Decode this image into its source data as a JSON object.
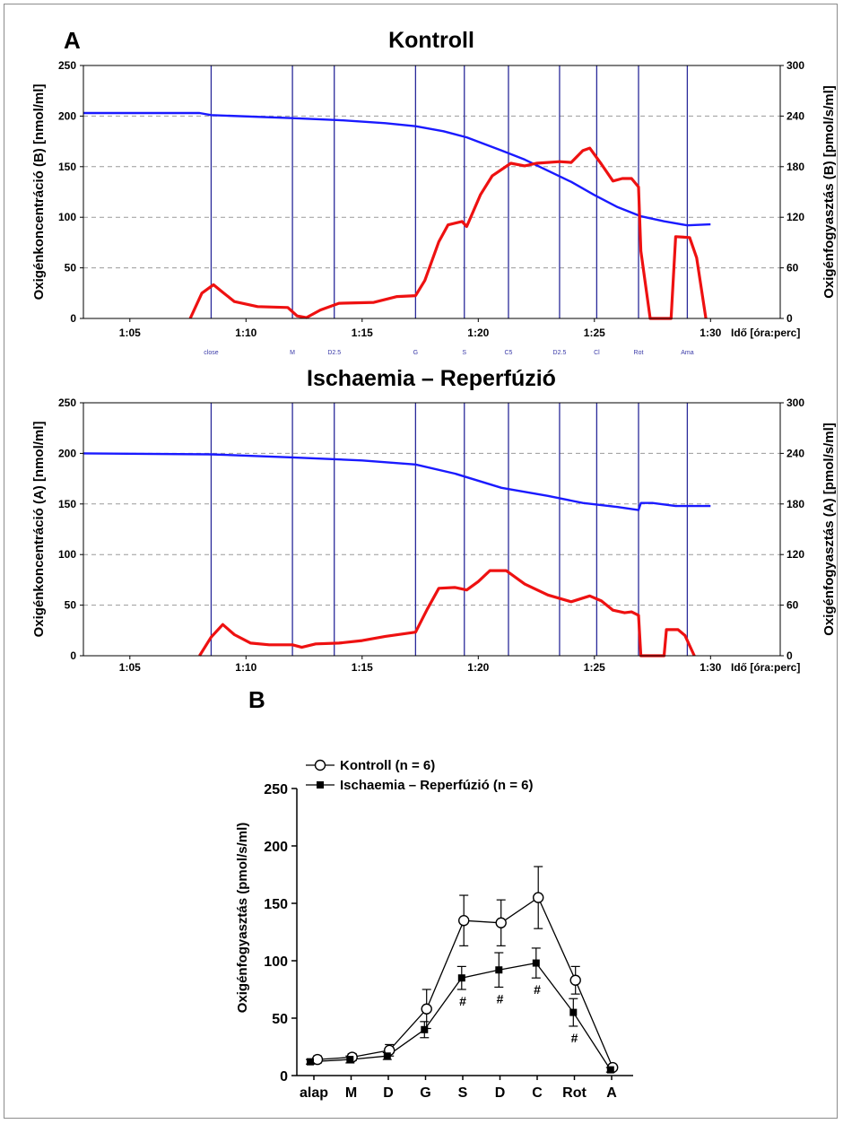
{
  "panel_a_label": "A",
  "panel_b_label": "B",
  "colors": {
    "concentration": "#1a1aff",
    "consumption": "#ee1111",
    "marker_line": "#2a2a9a",
    "grid": "#9a9a9a"
  },
  "chart_data": [
    {
      "type": "line",
      "title": "Kontroll",
      "xlabel": "Idő [óra:perc]",
      "ylabel_left": "Oxigénkoncentráció (B) [nmol/ml]",
      "ylabel_right": "Oxigénfogyasztás (B) [pmol/s/ml]",
      "x_unit": "minutes",
      "xlim": [
        "1:03",
        "1:33"
      ],
      "x_ticks": [
        "1:05",
        "1:10",
        "1:15",
        "1:20",
        "1:25",
        "1:30"
      ],
      "ylim_left": [
        0,
        250
      ],
      "y_ticks_left": [
        "0",
        "50",
        "100",
        "150",
        "200",
        "250"
      ],
      "ylim_right": [
        0,
        300
      ],
      "y_ticks_right": [
        "0",
        "60",
        "120",
        "180",
        "240",
        "300"
      ],
      "grid": "horizontal dashed",
      "event_markers": [
        {
          "time": "1:08.5",
          "label": "close"
        },
        {
          "time": "1:12",
          "label": "M"
        },
        {
          "time": "1:13.8",
          "label": "D2.5"
        },
        {
          "time": "1:17.3",
          "label": "G"
        },
        {
          "time": "1:19.4",
          "label": "S"
        },
        {
          "time": "1:21.3",
          "label": "C5"
        },
        {
          "time": "1:23.5",
          "label": "D2.5"
        },
        {
          "time": "1:25.1",
          "label": "Cl"
        },
        {
          "time": "1:26.9",
          "label": "Rot"
        },
        {
          "time": "1:29",
          "label": "Ama"
        }
      ],
      "series": [
        {
          "axis": "left",
          "points": [
            [
              "1:03",
              203
            ],
            [
              "1:08",
              203
            ],
            [
              "1:08.5",
              201
            ],
            [
              "1:12",
              198
            ],
            [
              "1:14",
              196
            ],
            [
              "1:16",
              193
            ],
            [
              "1:17.3",
              190
            ],
            [
              "1:18.5",
              185
            ],
            [
              "1:19.5",
              179
            ],
            [
              "1:21",
              166
            ],
            [
              "1:22",
              157
            ],
            [
              "1:23",
              146
            ],
            [
              "1:24",
              135
            ],
            [
              "1:25",
              122
            ],
            [
              "1:26",
              110
            ],
            [
              "1:27",
              101
            ],
            [
              "1:28",
              96
            ],
            [
              "1:29",
              92
            ],
            [
              "1:30",
              93
            ]
          ]
        },
        {
          "axis": "right",
          "points": [
            [
              "1:07.6",
              0
            ],
            [
              "1:08.1",
              30
            ],
            [
              "1:08.6",
              40
            ],
            [
              "1:09",
              31
            ],
            [
              "1:09.5",
              20
            ],
            [
              "1:10.5",
              14
            ],
            [
              "1:11.8",
              13
            ],
            [
              "1:12.2",
              3
            ],
            [
              "1:12.6",
              1
            ],
            [
              "1:13.2",
              10
            ],
            [
              "1:14",
              18
            ],
            [
              "1:15.5",
              19
            ],
            [
              "1:16.5",
              26
            ],
            [
              "1:17.3",
              27
            ],
            [
              "1:17.7",
              45
            ],
            [
              "1:18.3",
              91
            ],
            [
              "1:18.7",
              111
            ],
            [
              "1:19.3",
              115
            ],
            [
              "1:19.5",
              109
            ],
            [
              "1:20.1",
              147
            ],
            [
              "1:20.6",
              169
            ],
            [
              "1:21.4",
              184
            ],
            [
              "1:22",
              181
            ],
            [
              "1:22.5",
              184
            ],
            [
              "1:23.5",
              186
            ],
            [
              "1:24",
              185
            ],
            [
              "1:24.5",
              199
            ],
            [
              "1:24.8",
              202
            ],
            [
              "1:25.3",
              183
            ],
            [
              "1:25.8",
              163
            ],
            [
              "1:26.2",
              166
            ],
            [
              "1:26.6",
              166
            ],
            [
              "1:26.9",
              156
            ],
            [
              "1:27",
              80
            ],
            [
              "1:27.4",
              0
            ],
            [
              "1:28.3",
              0
            ],
            [
              "1:28.5",
              97
            ],
            [
              "1:29.1",
              96
            ],
            [
              "1:29.4",
              72
            ],
            [
              "1:29.8",
              0
            ]
          ]
        }
      ]
    },
    {
      "type": "line",
      "title": "Ischaemia – Reperfúzió",
      "xlabel": "Idő [óra:perc]",
      "ylabel_left": "Oxigénkoncentráció (A) [nmol/ml]",
      "ylabel_right": "Oxigénfogyasztás (A) [pmol/s/ml]",
      "x_unit": "minutes",
      "xlim": [
        "1:03",
        "1:33"
      ],
      "x_ticks": [
        "1:05",
        "1:10",
        "1:15",
        "1:20",
        "1:25",
        "1:30"
      ],
      "ylim_left": [
        0,
        250
      ],
      "y_ticks_left": [
        "0",
        "50",
        "100",
        "150",
        "200",
        "250"
      ],
      "ylim_right": [
        0,
        300
      ],
      "y_ticks_right": [
        "0",
        "60",
        "120",
        "180",
        "240",
        "300"
      ],
      "grid": "horizontal dashed",
      "event_markers": [
        {
          "time": "1:08.5"
        },
        {
          "time": "1:12"
        },
        {
          "time": "1:13.8"
        },
        {
          "time": "1:17.3"
        },
        {
          "time": "1:19.4"
        },
        {
          "time": "1:21.3"
        },
        {
          "time": "1:23.5"
        },
        {
          "time": "1:25.1"
        },
        {
          "time": "1:26.9"
        },
        {
          "time": "1:29"
        }
      ],
      "series": [
        {
          "axis": "left",
          "points": [
            [
              "1:03",
              200
            ],
            [
              "1:08.5",
              199
            ],
            [
              "1:12",
              196
            ],
            [
              "1:15",
              193
            ],
            [
              "1:17.3",
              189
            ],
            [
              "1:19",
              180
            ],
            [
              "1:21",
              166
            ],
            [
              "1:23",
              158
            ],
            [
              "1:24.5",
              151
            ],
            [
              "1:26",
              147
            ],
            [
              "1:26.9",
              144
            ],
            [
              "1:27",
              151
            ],
            [
              "1:27.5",
              151
            ],
            [
              "1:28.5",
              148
            ],
            [
              "1:30",
              148
            ]
          ]
        },
        {
          "axis": "right",
          "points": [
            [
              "1:08",
              0
            ],
            [
              "1:08.5",
              22
            ],
            [
              "1:09",
              37
            ],
            [
              "1:09.5",
              25
            ],
            [
              "1:10.2",
              15
            ],
            [
              "1:11",
              13
            ],
            [
              "1:12",
              13
            ],
            [
              "1:12.4",
              10
            ],
            [
              "1:13",
              14
            ],
            [
              "1:14",
              15
            ],
            [
              "1:15",
              18
            ],
            [
              "1:16",
              23
            ],
            [
              "1:17.3",
              28
            ],
            [
              "1:17.8",
              55
            ],
            [
              "1:18.3",
              80
            ],
            [
              "1:19",
              81
            ],
            [
              "1:19.5",
              78
            ],
            [
              "1:20",
              88
            ],
            [
              "1:20.5",
              101
            ],
            [
              "1:21.2",
              101
            ],
            [
              "1:22",
              85
            ],
            [
              "1:23",
              72
            ],
            [
              "1:24",
              64
            ],
            [
              "1:24.8",
              71
            ],
            [
              "1:25.3",
              65
            ],
            [
              "1:25.8",
              54
            ],
            [
              "1:26.3",
              51
            ],
            [
              "1:26.6",
              52
            ],
            [
              "1:26.9",
              48
            ],
            [
              "1:27",
              0
            ],
            [
              "1:28",
              0
            ],
            [
              "1:28.1",
              31
            ],
            [
              "1:28.6",
              31
            ],
            [
              "1:28.9",
              24
            ],
            [
              "1:29.3",
              0
            ]
          ]
        }
      ]
    },
    {
      "type": "line",
      "ylabel": "Oxigénfogyasztás (pmol/s/ml)",
      "ylim": [
        0,
        250
      ],
      "y_ticks": [
        "0",
        "50",
        "100",
        "150",
        "200",
        "250"
      ],
      "categories": [
        "alap",
        "M",
        "D",
        "G",
        "S",
        "D",
        "C",
        "Rot",
        "A"
      ],
      "legend_placement": "top-left",
      "series": [
        {
          "name": "Kontroll (n = 6)",
          "marker": "open-circle",
          "values": [
            14,
            16,
            22,
            58,
            135,
            133,
            155,
            83,
            7
          ],
          "errors": [
            3,
            3,
            5,
            17,
            22,
            20,
            27,
            12,
            2
          ]
        },
        {
          "name": "Ischaemia – Reperfúzió (n = 6)",
          "marker": "filled-square",
          "values": [
            12,
            14,
            17,
            40,
            85,
            92,
            98,
            55,
            5
          ],
          "errors": [
            2,
            3,
            3,
            7,
            10,
            15,
            13,
            12,
            2
          ]
        }
      ],
      "significance_marker": "#",
      "significant_categories": [
        "S",
        "D",
        "C",
        "Rot"
      ]
    }
  ]
}
